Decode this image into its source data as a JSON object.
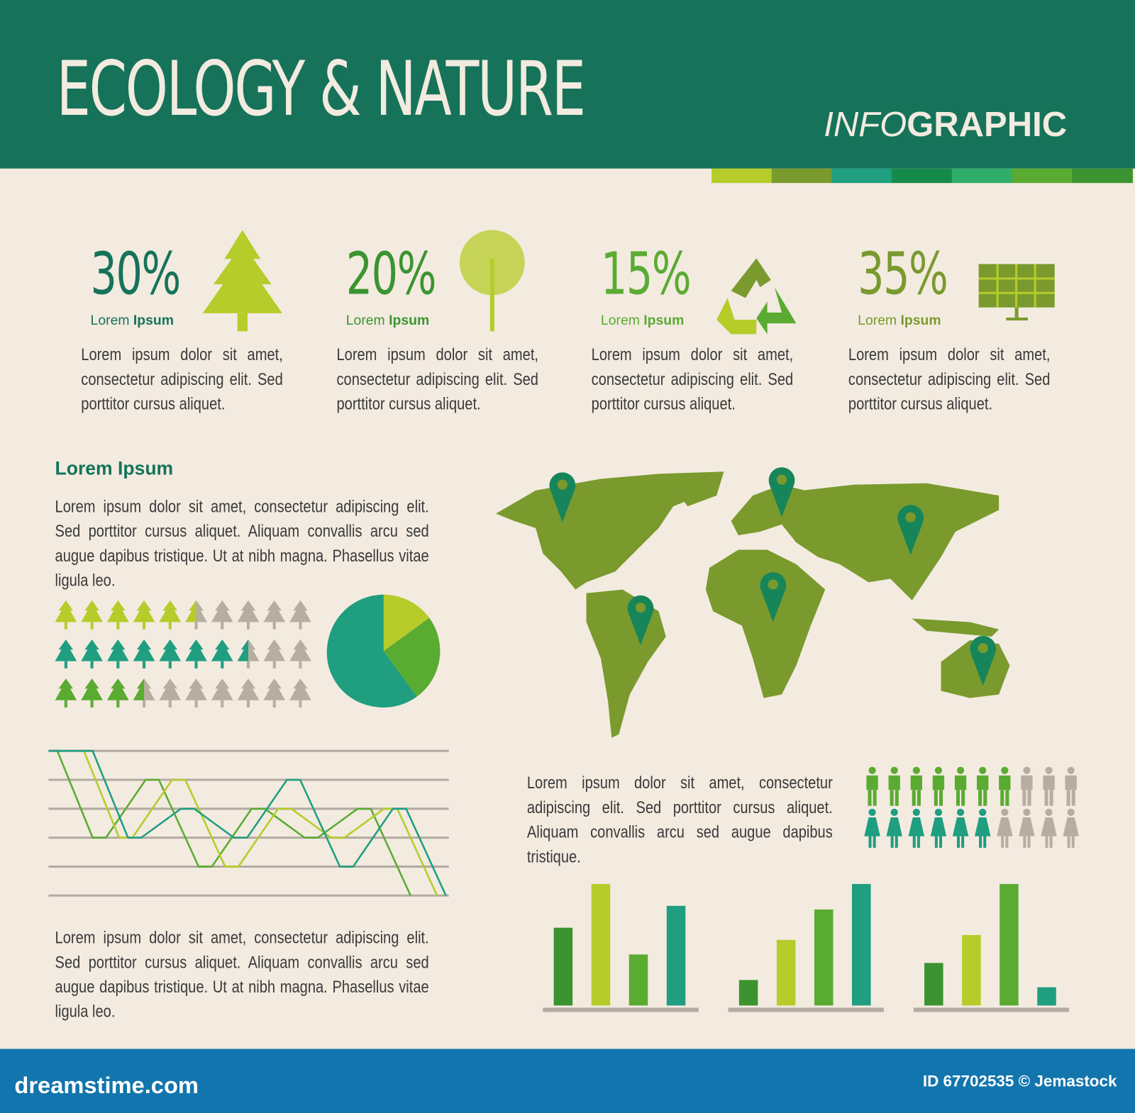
{
  "header": {
    "title": "ECOLOGY & NATURE",
    "infographic_light": "INFO",
    "infographic_bold": "GRAPHIC"
  },
  "colors": {
    "header": "#16735a",
    "background": "#f3ebe0",
    "lime": "#b5cc2a",
    "green": "#5aab32",
    "dark_green": "#3b9430",
    "teal": "#1f9e80",
    "map": "#7a9a2e",
    "inactive": "#b8aea0",
    "footer": "#1275ad"
  },
  "color_strip": [
    "#b5cc2a",
    "#7a9a2e",
    "#1f9e80",
    "#168a4a",
    "#2fae6a",
    "#5aab32",
    "#3b9430"
  ],
  "stats": [
    {
      "value": "30%",
      "label_light": "Lorem",
      "label_bold": "Ipsum",
      "icon": "pine-tree-icon",
      "text": "Lorem ipsum dolor sit amet, consectetur adipiscing elit. Sed porttitor cursus aliquet.",
      "color": "#16735a"
    },
    {
      "value": "20%",
      "label_light": "Lorem",
      "label_bold": "Ipsum",
      "icon": "leafy-tree-icon",
      "text": "Lorem ipsum dolor sit amet, consectetur adipiscing elit. Sed porttitor cursus aliquet.",
      "color": "#3b9430"
    },
    {
      "value": "15%",
      "label_light": "Lorem",
      "label_bold": "Ipsum",
      "icon": "recycle-icon",
      "text": "Lorem ipsum dolor sit amet, consectetur adipiscing elit. Sed porttitor cursus aliquet.",
      "color": "#5aab32"
    },
    {
      "value": "35%",
      "label_light": "Lorem",
      "label_bold": "Ipsum",
      "icon": "solar-panel-icon",
      "text": "Lorem ipsum dolor sit amet, consectetur adipiscing elit. Sed porttitor cursus aliquet.",
      "color": "#7a9a2e"
    }
  ],
  "section": {
    "heading": "Lorem Ipsum",
    "text": "Lorem ipsum dolor sit amet, consectetur adipiscing elit. Sed porttitor cursus aliquet. Aliquam convallis arcu sed augue dapibus tristique. Ut at nibh magna. Phasellus vitae ligula leo."
  },
  "bottom_text": "Lorem ipsum dolor sit amet, consectetur adipiscing elit. Sed porttitor cursus aliquet. Aliquam convallis arcu sed augue dapibus tristique. Ut at nibh magna. Phasellus vitae ligula leo.",
  "people_text": "Lorem ipsum dolor sit amet, consectetur adipiscing elit. Sed porttitor cursus aliquet. Aliquam convallis arcu sed augue dapibus tristique.",
  "footer": {
    "site": "dreamstime.com",
    "id": "ID 67702535 © Jemastock"
  },
  "chart_data": [
    {
      "type": "pictogram",
      "name": "trees",
      "total": 10,
      "rows": [
        {
          "filled": 5.5,
          "color": "#b5cc2a"
        },
        {
          "filled": 7.5,
          "color": "#1f9e80"
        },
        {
          "filled": 3.5,
          "color": "#5aab32"
        }
      ]
    },
    {
      "type": "pie",
      "values": [
        15,
        25,
        60
      ],
      "colors": [
        "#b5cc2a",
        "#5aab32",
        "#1f9e80"
      ]
    },
    {
      "type": "line",
      "ylim": [
        0,
        5
      ],
      "grid": true,
      "series": [
        {
          "color": "#5aab32",
          "points": [
            [
              0,
              5
            ],
            [
              2,
              5
            ],
            [
              10,
              2
            ],
            [
              13,
              2
            ],
            [
              22,
              4
            ],
            [
              25,
              4
            ],
            [
              34,
              1
            ],
            [
              37,
              1
            ],
            [
              46,
              3
            ],
            [
              49,
              3
            ],
            [
              58,
              2
            ],
            [
              61,
              2
            ],
            [
              70,
              3
            ],
            [
              73,
              3
            ],
            [
              82,
              0
            ]
          ]
        },
        {
          "color": "#b5cc2a",
          "points": [
            [
              5,
              5
            ],
            [
              8,
              5
            ],
            [
              16,
              2
            ],
            [
              19,
              2
            ],
            [
              28,
              4
            ],
            [
              31,
              4
            ],
            [
              40,
              1
            ],
            [
              43,
              1
            ],
            [
              52,
              3
            ],
            [
              55,
              3
            ],
            [
              64,
              2
            ],
            [
              67,
              2
            ],
            [
              76,
              3
            ],
            [
              79,
              3
            ],
            [
              88,
              0
            ]
          ]
        },
        {
          "color": "#1f9e80",
          "points": [
            [
              0,
              5
            ],
            [
              10,
              5
            ],
            [
              18,
              2
            ],
            [
              21,
              2
            ],
            [
              30,
              3
            ],
            [
              33,
              3
            ],
            [
              42,
              2
            ],
            [
              45,
              2
            ],
            [
              54,
              4
            ],
            [
              57,
              4
            ],
            [
              66,
              1
            ],
            [
              69,
              1
            ],
            [
              78,
              3
            ],
            [
              81,
              3
            ],
            [
              90,
              0
            ]
          ]
        }
      ]
    },
    {
      "type": "pictogram",
      "name": "people",
      "total": 10,
      "rows": [
        {
          "filled": 7,
          "color": "#5aab32",
          "figure": "man"
        },
        {
          "filled": 6,
          "color": "#1f9e80",
          "figure": "woman"
        }
      ]
    },
    {
      "type": "bar",
      "ylim": [
        0,
        100
      ],
      "colors": [
        "#3b9430",
        "#b5cc2a",
        "#5aab32",
        "#1f9e80"
      ],
      "groups": [
        [
          64,
          100,
          42,
          82
        ],
        [
          21,
          54,
          79,
          100
        ],
        [
          35,
          58,
          100,
          15
        ]
      ]
    }
  ],
  "map": {
    "pins": [
      "north-america",
      "europe",
      "asia",
      "africa",
      "south-america",
      "australia"
    ]
  }
}
